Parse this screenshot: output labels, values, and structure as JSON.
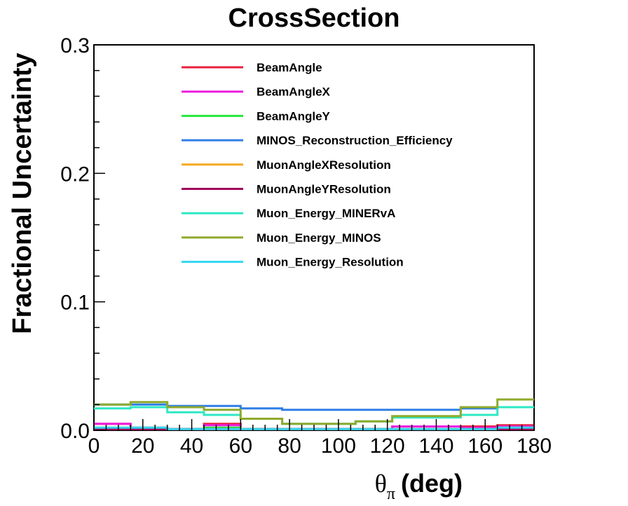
{
  "chart_data": {
    "type": "line",
    "title": "CrossSection",
    "ylabel": "Fractional Uncertainty",
    "xlabel": {
      "symbol": "θ",
      "subscript": "π",
      "unit": "(deg)"
    },
    "xlim": [
      0,
      180
    ],
    "ylim": [
      0,
      0.3
    ],
    "x_ticks": [
      "0",
      "20",
      "40",
      "60",
      "80",
      "100",
      "120",
      "140",
      "160",
      "180"
    ],
    "y_ticks": [
      "0.0",
      "0.1",
      "0.2",
      "0.3"
    ],
    "legend_position": "top",
    "bin_edges": [
      0,
      15,
      30,
      45,
      60,
      77,
      107,
      122,
      150,
      165,
      180
    ],
    "series": [
      {
        "name": "BeamAngle",
        "color": "#e8213c",
        "values": [
          0.005,
          0.002,
          0.001,
          0.005,
          0.001,
          0.001,
          0.001,
          0.003,
          0.003,
          0.004
        ]
      },
      {
        "name": "BeamAngleX",
        "color": "#ee1ee0",
        "values": [
          0.005,
          0.002,
          0.001,
          0.004,
          0.001,
          0.001,
          0.001,
          0.003,
          0.002,
          0.003
        ]
      },
      {
        "name": "BeamAngleY",
        "color": "#26e83a",
        "values": [
          0.002,
          0.002,
          0.001,
          0.002,
          0.001,
          0.001,
          0.001,
          0.001,
          0.001,
          0.002
        ]
      },
      {
        "name": "MINOS_Reconstruction_Efficiency",
        "color": "#2f7ee6",
        "values": [
          0.02,
          0.02,
          0.019,
          0.019,
          0.017,
          0.016,
          0.016,
          0.016,
          0.017,
          0.018
        ]
      },
      {
        "name": "MuonAngleXResolution",
        "color": "#f6a81e",
        "values": [
          0.001,
          0.001,
          0.001,
          0.001,
          0.001,
          0.001,
          0.001,
          0.001,
          0.001,
          0.001
        ]
      },
      {
        "name": "MuonAngleYResolution",
        "color": "#a0005c",
        "values": [
          0.001,
          0.001,
          0.001,
          0.001,
          0.001,
          0.001,
          0.001,
          0.001,
          0.001,
          0.001
        ]
      },
      {
        "name": "Muon_Energy_MINERvA",
        "color": "#2ee8c4",
        "values": [
          0.017,
          0.018,
          0.014,
          0.012,
          0.009,
          0.005,
          0.007,
          0.01,
          0.012,
          0.018
        ]
      },
      {
        "name": "Muon_Energy_MINOS",
        "color": "#8eaa2c",
        "values": [
          0.02,
          0.022,
          0.018,
          0.016,
          0.009,
          0.005,
          0.007,
          0.011,
          0.018,
          0.024
        ]
      },
      {
        "name": "Muon_Energy_Resolution",
        "color": "#33d6f2",
        "values": [
          0.002,
          0.002,
          0.001,
          0.001,
          0.001,
          0.001,
          0.001,
          0.001,
          0.001,
          0.002
        ]
      }
    ]
  }
}
